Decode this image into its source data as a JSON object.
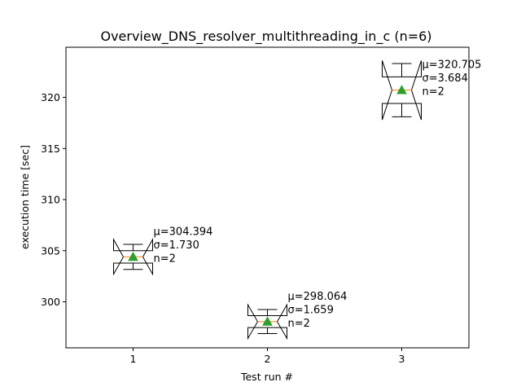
{
  "chart_data": {
    "type": "box",
    "title": "Overview_DNS_resolver_multithreading_in_c (n=6)",
    "xlabel": "Test run #",
    "ylabel": "execution time [sec]",
    "xlim": [
      0.5,
      3.5
    ],
    "ylim": [
      295.5,
      324.9
    ],
    "xticks": [
      1,
      2,
      3
    ],
    "yticks": [
      300,
      305,
      310,
      315,
      320
    ],
    "grid": false,
    "boxes": [
      {
        "x": 1,
        "mean": 304.394,
        "median": 304.394,
        "q1": 303.787,
        "q3": 305.0,
        "whisker_low": 303.17,
        "whisker_high": 305.62,
        "notch_low": 302.7,
        "notch_high": 306.1,
        "annotation": [
          "μ=304.394",
          "σ=1.730",
          "n=2"
        ]
      },
      {
        "x": 2,
        "mean": 298.064,
        "median": 298.064,
        "q1": 297.48,
        "q3": 298.65,
        "whisker_low": 296.89,
        "whisker_high": 299.24,
        "notch_low": 296.42,
        "notch_high": 299.71,
        "annotation": [
          "μ=298.064",
          "σ=1.659",
          "n=2"
        ]
      },
      {
        "x": 3,
        "mean": 320.705,
        "median": 320.705,
        "q1": 319.4,
        "q3": 322.0,
        "whisker_low": 318.1,
        "whisker_high": 323.31,
        "notch_low": 317.8,
        "notch_high": 323.6,
        "annotation": [
          "μ=320.705",
          "σ=3.684",
          "n=2"
        ]
      }
    ],
    "colors": {
      "box": "#000000",
      "median": "#ff7f0e",
      "mean_marker": "#2ca02c"
    }
  }
}
